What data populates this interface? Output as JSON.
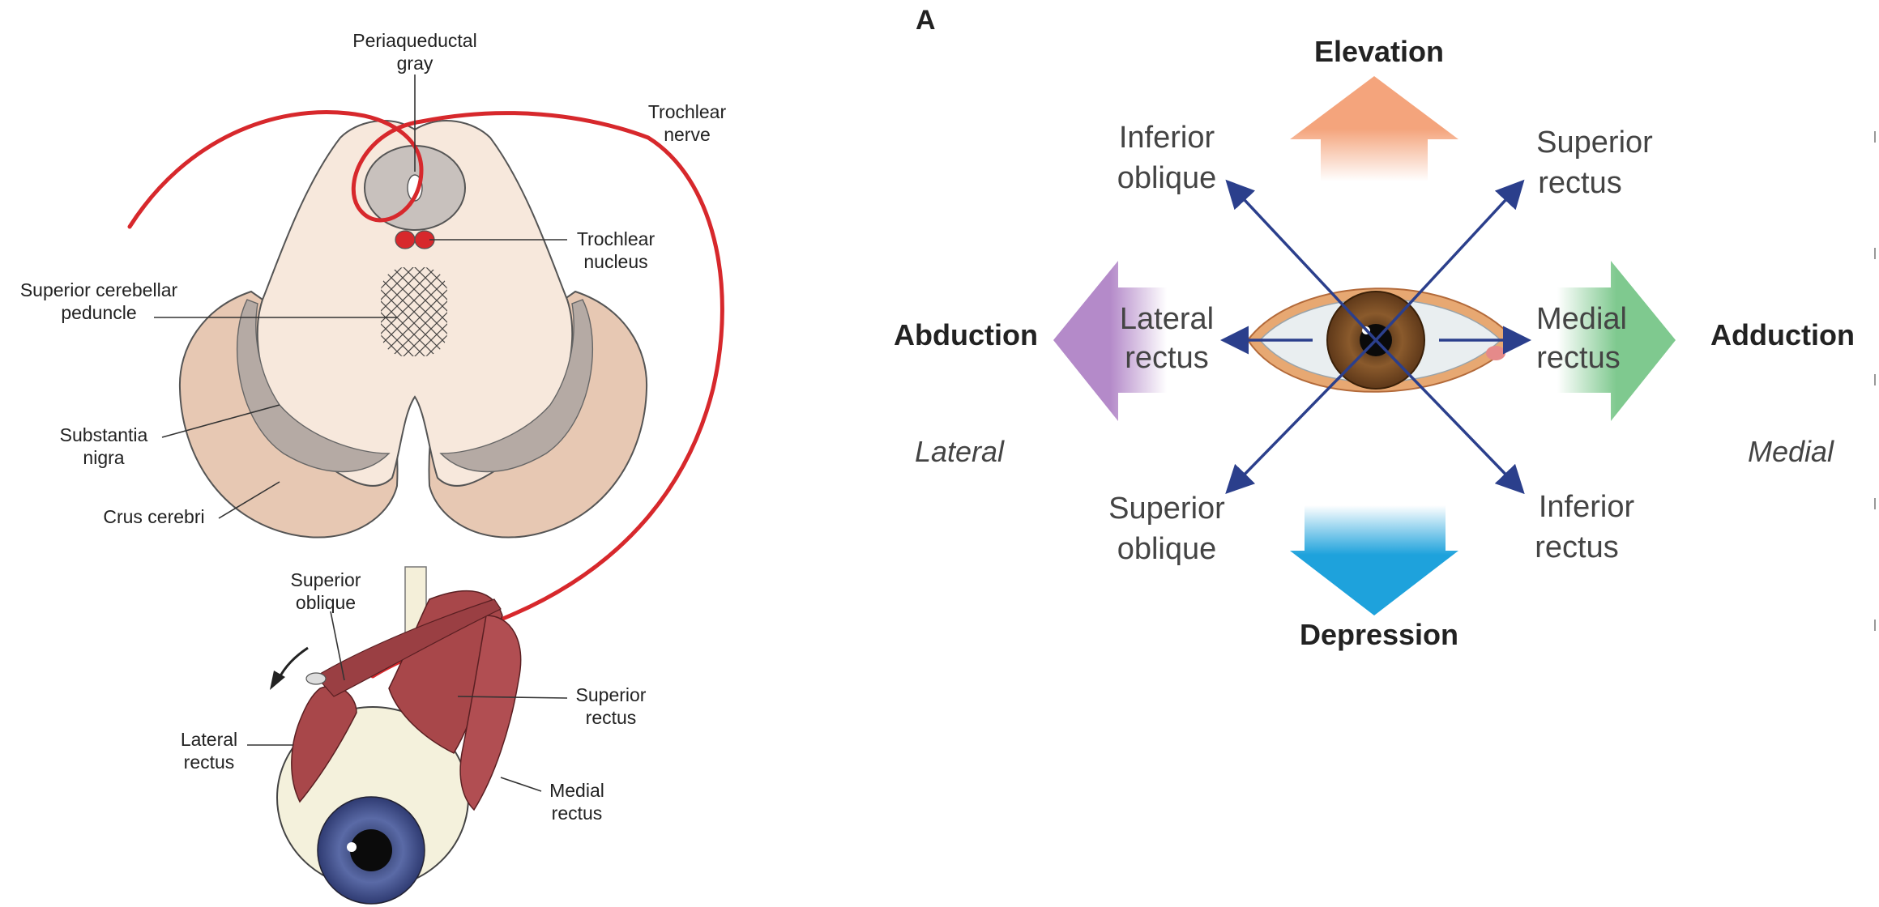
{
  "left_panel": {
    "labels": {
      "periaqueductal_gray": [
        "Periaqueductal",
        "gray"
      ],
      "trochlear_nerve": [
        "Trochlear",
        "nerve"
      ],
      "trochlear_nucleus": [
        "Trochlear",
        "nucleus"
      ],
      "superior_cerebellar_peduncle": [
        "Superior cerebellar",
        "peduncle"
      ],
      "substantia_nigra": [
        "Substantia",
        "nigra"
      ],
      "crus_cerebri": "Crus cerebri",
      "superior_oblique": [
        "Superior",
        "oblique"
      ],
      "superior_rectus": [
        "Superior",
        "rectus"
      ],
      "lateral_rectus": [
        "Lateral",
        "rectus"
      ],
      "medial_rectus": [
        "Medial",
        "rectus"
      ]
    },
    "colors": {
      "nerve": "#d7282c",
      "brainstem": "#f7e8dc",
      "crus": "#e7c8b3",
      "nigra": "#b5aaa4",
      "gray_matter": "#c8c1bd",
      "muscle": "#a8474a",
      "iris": "#4c5a93"
    }
  },
  "right_panel": {
    "panel_letter": "A",
    "directions": {
      "elevation": "Elevation",
      "depression": "Depression",
      "abduction": "Abduction",
      "adduction": "Adduction",
      "lateral": "Lateral",
      "medial": "Medial"
    },
    "muscles": {
      "inferior_oblique": [
        "Inferior",
        "oblique"
      ],
      "superior_rectus": [
        "Superior",
        "rectus"
      ],
      "lateral_rectus": [
        "Lateral",
        "rectus"
      ],
      "medial_rectus": [
        "Medial",
        "rectus"
      ],
      "superior_oblique": [
        "Superior",
        "oblique"
      ],
      "inferior_rectus": [
        "Inferior",
        "rectus"
      ]
    },
    "colors": {
      "elevation_arrow": "#f4a47c",
      "depression_arrow": "#1ea2dc",
      "abduction_arrow": "#b48ac9",
      "adduction_arrow": "#7fc98f",
      "action_arrows": "#2b3f8c",
      "iris": "#7a4a24"
    }
  }
}
